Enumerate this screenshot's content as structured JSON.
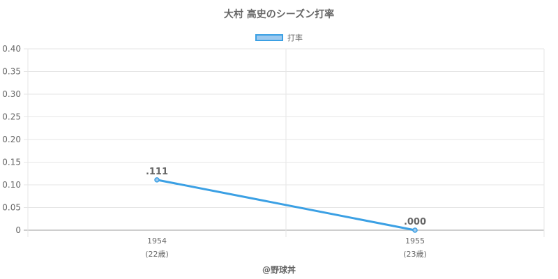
{
  "chart_data": {
    "type": "line",
    "title": "大村 高史のシーズン打率",
    "x": [
      "1954",
      "1955"
    ],
    "x_sublabels": [
      "(22歳)",
      "(23歳)"
    ],
    "series": [
      {
        "name": "打率",
        "values": [
          0.111,
          0.0
        ],
        "data_labels": [
          ".111",
          ".000"
        ]
      }
    ],
    "ylim": [
      0,
      0.4
    ],
    "yticks": [
      "0",
      "0.05",
      "0.10",
      "0.15",
      "0.20",
      "0.25",
      "0.30",
      "0.35",
      "0.40"
    ],
    "grid": true,
    "legend_position": "top"
  },
  "colors": {
    "line": "#3ba0e4",
    "fill": "#9cc9ef",
    "grid": "#e6e6e6",
    "axis": "#bdbdbd",
    "text": "#666666"
  },
  "credit": "@野球丼"
}
